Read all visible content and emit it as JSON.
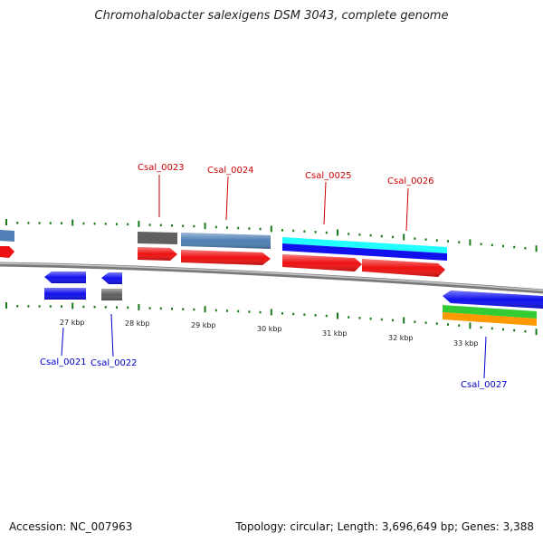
{
  "title": "Chromohalobacter salexigens DSM 3043, complete genome",
  "footer": {
    "accession": "Accession: NC_007963",
    "summary": "Topology: circular; Length: 3,696,649 bp; Genes: 3,388"
  },
  "colors": {
    "backbone": "#808080",
    "tick": "#1a7a1a",
    "forward_label": "#cc0000",
    "reverse_label": "#0000cc",
    "red_cds": "#ee1111",
    "blue_cds": "#1111ee",
    "steel": "#4f7fb5",
    "gray": "#606060",
    "cyan": "#22ffff",
    "green": "#33cc33",
    "orange": "#ff9900"
  },
  "scale_labels": [
    "27 kbp",
    "28 kbp",
    "29 kbp",
    "30 kbp",
    "31 kbp",
    "32 kbp",
    "33 kbp"
  ],
  "gene_labels": {
    "forward": [
      "Csal_0023",
      "Csal_0024",
      "Csal_0025",
      "Csal_0026"
    ],
    "reverse": [
      "Csal_0021",
      "Csal_0022",
      "Csal_0027"
    ]
  }
}
